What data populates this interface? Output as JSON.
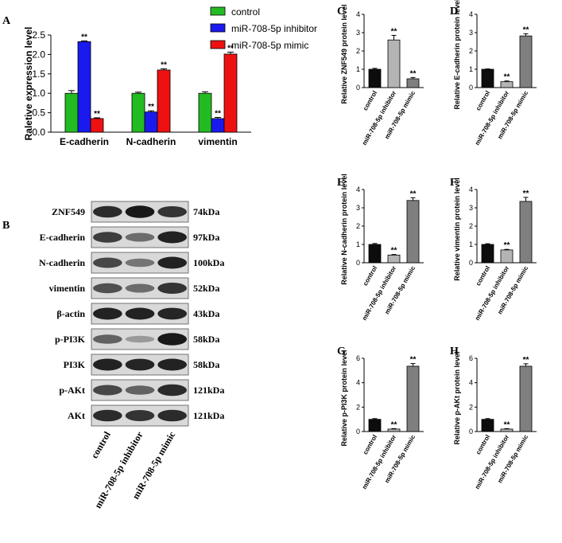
{
  "panels": {
    "a": "A",
    "b": "B",
    "c": "C",
    "d": "D",
    "e": "E",
    "f": "F",
    "g": "G",
    "h": "H"
  },
  "significance_mark": "**",
  "colors": {
    "control": "#22bb22",
    "inhibitor": "#1a1aee",
    "mimic": "#ee1111",
    "bar_control": "#0d0d0d",
    "bar_inhibitor": "#b4b4b4",
    "bar_mimic": "#7f7f7f"
  },
  "chart_data": [
    {
      "panel": "A",
      "type": "bar",
      "ylabel": "Raletive expression level",
      "categories": [
        "E-cadherin",
        "N-cadherin",
        "vimentin"
      ],
      "ylim": [
        0,
        2.5
      ],
      "yticks": [
        "0.0",
        "0.5",
        "1.0",
        "1.5",
        "2.0",
        "2.5"
      ],
      "series": [
        {
          "name": "control",
          "values": [
            1.0,
            1.0,
            1.0
          ],
          "errors": [
            0.07,
            0.03,
            0.04
          ],
          "sig": [
            false,
            false,
            false
          ]
        },
        {
          "name": "miR-708-5p inhibitor",
          "values": [
            2.33,
            0.52,
            0.35
          ],
          "errors": [
            0.02,
            0.03,
            0.03
          ],
          "sig": [
            true,
            true,
            true
          ]
        },
        {
          "name": "miR-708-5p mimic",
          "values": [
            0.35,
            1.6,
            2.01
          ],
          "errors": [
            0.02,
            0.03,
            0.05
          ],
          "sig": [
            true,
            true,
            true
          ]
        }
      ],
      "legend_position": "top-right"
    },
    {
      "panel": "C",
      "type": "bar",
      "ylabel": "Relative ZNF549 protein level",
      "categories": [
        "control",
        "miR-708-5p inhibitor",
        "miR-708-5p mimic"
      ],
      "ylim": [
        0,
        4
      ],
      "yticks": [
        "0",
        "1",
        "2",
        "3",
        "4"
      ],
      "values": [
        1.0,
        2.6,
        0.48
      ],
      "errors": [
        0.05,
        0.25,
        0.07
      ],
      "sig": [
        false,
        true,
        true
      ]
    },
    {
      "panel": "D",
      "type": "bar",
      "ylabel": "Relative E-cadherin protein level",
      "categories": [
        "control",
        "miR-708-5p inhibitor",
        "miR-708-5p mimic"
      ],
      "ylim": [
        0,
        4
      ],
      "yticks": [
        "0",
        "1",
        "2",
        "3",
        "4"
      ],
      "values": [
        1.0,
        0.32,
        2.82
      ],
      "errors": [
        0.02,
        0.04,
        0.12
      ],
      "sig": [
        false,
        true,
        true
      ]
    },
    {
      "panel": "E",
      "type": "bar",
      "ylabel": "Relative N-cadherin protein level",
      "categories": [
        "control",
        "miR-708-5p inhibitor",
        "miR-708-5p mimic"
      ],
      "ylim": [
        0,
        4
      ],
      "yticks": [
        "0",
        "1",
        "2",
        "3",
        "4"
      ],
      "values": [
        1.0,
        0.42,
        3.4
      ],
      "errors": [
        0.05,
        0.03,
        0.15
      ],
      "sig": [
        false,
        true,
        true
      ]
    },
    {
      "panel": "F",
      "type": "bar",
      "ylabel": "Relative vimentin protein level",
      "categories": [
        "control",
        "miR-708-5p inhibitor",
        "miR-708-5p mimic"
      ],
      "ylim": [
        0,
        4
      ],
      "yticks": [
        "0",
        "1",
        "2",
        "3",
        "4"
      ],
      "values": [
        1.0,
        0.7,
        3.35
      ],
      "errors": [
        0.04,
        0.03,
        0.22
      ],
      "sig": [
        false,
        true,
        true
      ]
    },
    {
      "panel": "G",
      "type": "bar",
      "ylabel": "Relative p-PI3K protein level",
      "categories": [
        "control",
        "miR-708-5p inhibitor",
        "miR-708-5p mimic"
      ],
      "ylim": [
        0,
        6
      ],
      "yticks": [
        "0",
        "2",
        "4",
        "6"
      ],
      "values": [
        1.0,
        0.2,
        5.35
      ],
      "errors": [
        0.06,
        0.04,
        0.22
      ],
      "sig": [
        false,
        true,
        true
      ]
    },
    {
      "panel": "H",
      "type": "bar",
      "ylabel": "Relative p-AKt protein level",
      "categories": [
        "control",
        "miR-708-5p inhibitor",
        "miR-708-5p mimic"
      ],
      "ylim": [
        0,
        6
      ],
      "yticks": [
        "0",
        "2",
        "4",
        "6"
      ],
      "values": [
        1.0,
        0.2,
        5.35
      ],
      "errors": [
        0.06,
        0.04,
        0.2
      ],
      "sig": [
        false,
        true,
        true
      ]
    }
  ],
  "blot": {
    "lanes": [
      "control",
      "miR-708-5p inhibitor",
      "miR-708-5p mimic"
    ],
    "rows": [
      {
        "name": "ZNF549",
        "kda": "74kDa",
        "intensity": [
          0.85,
          0.95,
          0.8
        ]
      },
      {
        "name": "E-cadherin",
        "kda": "97kDa",
        "intensity": [
          0.75,
          0.5,
          0.9
        ]
      },
      {
        "name": "N-cadherin",
        "kda": "100kDa",
        "intensity": [
          0.7,
          0.45,
          0.9
        ]
      },
      {
        "name": "vimentin",
        "kda": "52kDa",
        "intensity": [
          0.65,
          0.5,
          0.8
        ]
      },
      {
        "name": "β-actin",
        "kda": "43kDa",
        "intensity": [
          0.9,
          0.9,
          0.88
        ]
      },
      {
        "name": "p-PI3K",
        "kda": "58kDa",
        "intensity": [
          0.55,
          0.25,
          0.95
        ]
      },
      {
        "name": "PI3K",
        "kda": "58kDa",
        "intensity": [
          0.9,
          0.88,
          0.9
        ]
      },
      {
        "name": "p-AKt",
        "kda": "121kDa",
        "intensity": [
          0.7,
          0.55,
          0.85
        ]
      },
      {
        "name": "AKt",
        "kda": "121kDa",
        "intensity": [
          0.85,
          0.8,
          0.85
        ]
      }
    ]
  }
}
